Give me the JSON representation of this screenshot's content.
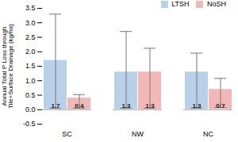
{
  "chart_data": {
    "type": "bar",
    "categories": [
      "SC",
      "NW",
      "NC"
    ],
    "ylabel": "Annual Total P Loss through\nTile+Surface Drainage (kg/ha)",
    "series": [
      {
        "name": "LTSH",
        "color": "#b8d0e8",
        "values": [
          1.7,
          1.3,
          1.3
        ],
        "error_plus": [
          1.6,
          1.4,
          0.65
        ],
        "error_minus": [
          1.65,
          1.25,
          1.25
        ]
      },
      {
        "name": "NoSH",
        "color": "#f2b8b8",
        "values": [
          0.4,
          1.3,
          0.7
        ],
        "value_labels": [
          "0:4",
          "1:3",
          "0:7"
        ],
        "error_plus": [
          0.12,
          0.82,
          0.38
        ],
        "error_minus": [
          0.35,
          1.25,
          0.62
        ]
      }
    ],
    "ylim": [
      -0.5,
      3.5
    ],
    "yticks": [
      -0.5,
      {
        "value": 0,
        "label": "0.0"
      },
      0.5,
      {
        "value": 1,
        "label": "1.0"
      },
      1.5,
      {
        "value": 2,
        "label": "2.0"
      },
      2.5,
      {
        "value": 3,
        "label": "3.0"
      },
      3.5
    ],
    "legend": "upper right",
    "data_labels": true,
    "grid": false
  }
}
